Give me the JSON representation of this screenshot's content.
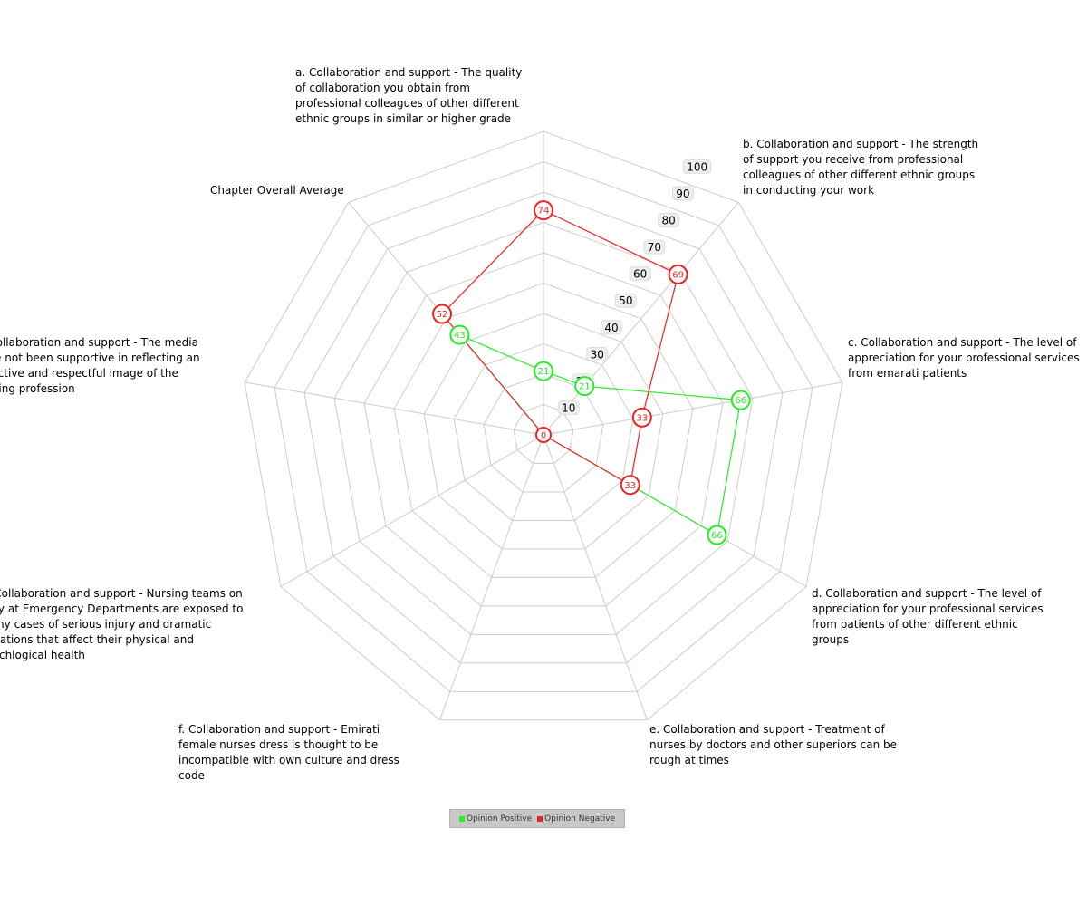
{
  "chart_data": {
    "type": "radar",
    "axes": [
      "a. Collaboration and support - The quality of collaboration you obtain from professional colleagues of other different ethnic groups in similar or higher grade",
      "b. Collaboration and support - The strength of support you receive from professional colleagues of other different ethnic groups in conducting your work",
      "c. Collaboration and support - The level of appreciation for your professional services from emarati patients",
      "d. Collaboration and support - The level of appreciation for your professional services from patients of other different ethnic groups",
      "e. Collaboration and support - Treatment of nurses by doctors and other superiors can be rough at times",
      "f. Collaboration and support - Emirati female nurses dress is thought to be incompatible with own culture and dress code",
      "g. Collaboration and support - Nursing teams on duty at Emergency Departments are exposed to many cases of serious injury and dramatic situations that affect their physical and psychlogical health",
      "h. Collaboration and support - The media have not been supportive in reflecting an objective and respectful image of the nursing profession",
      "Chapter Overall Average"
    ],
    "ticks": [
      "10",
      "20",
      "30",
      "40",
      "50",
      "60",
      "70",
      "80",
      "90",
      "100"
    ],
    "rmax": 100,
    "series": [
      {
        "name": "Opinion Positive",
        "color": "#22ee22",
        "values": [
          21,
          21,
          66,
          66,
          0,
          0,
          0,
          0,
          43
        ],
        "labels": [
          "21",
          "21",
          "66",
          "66",
          "",
          "",
          "",
          "",
          "43"
        ]
      },
      {
        "name": "Opinion Negative",
        "color": "#ee2222",
        "values": [
          74,
          69,
          33,
          33,
          0,
          0,
          0,
          0,
          52
        ],
        "labels": [
          "74",
          "69",
          "33",
          "33",
          "",
          "",
          "",
          "",
          "52"
        ]
      }
    ],
    "overlap_color": "#993300",
    "center_label": "0",
    "legend_position": "bottom",
    "grid": true
  }
}
